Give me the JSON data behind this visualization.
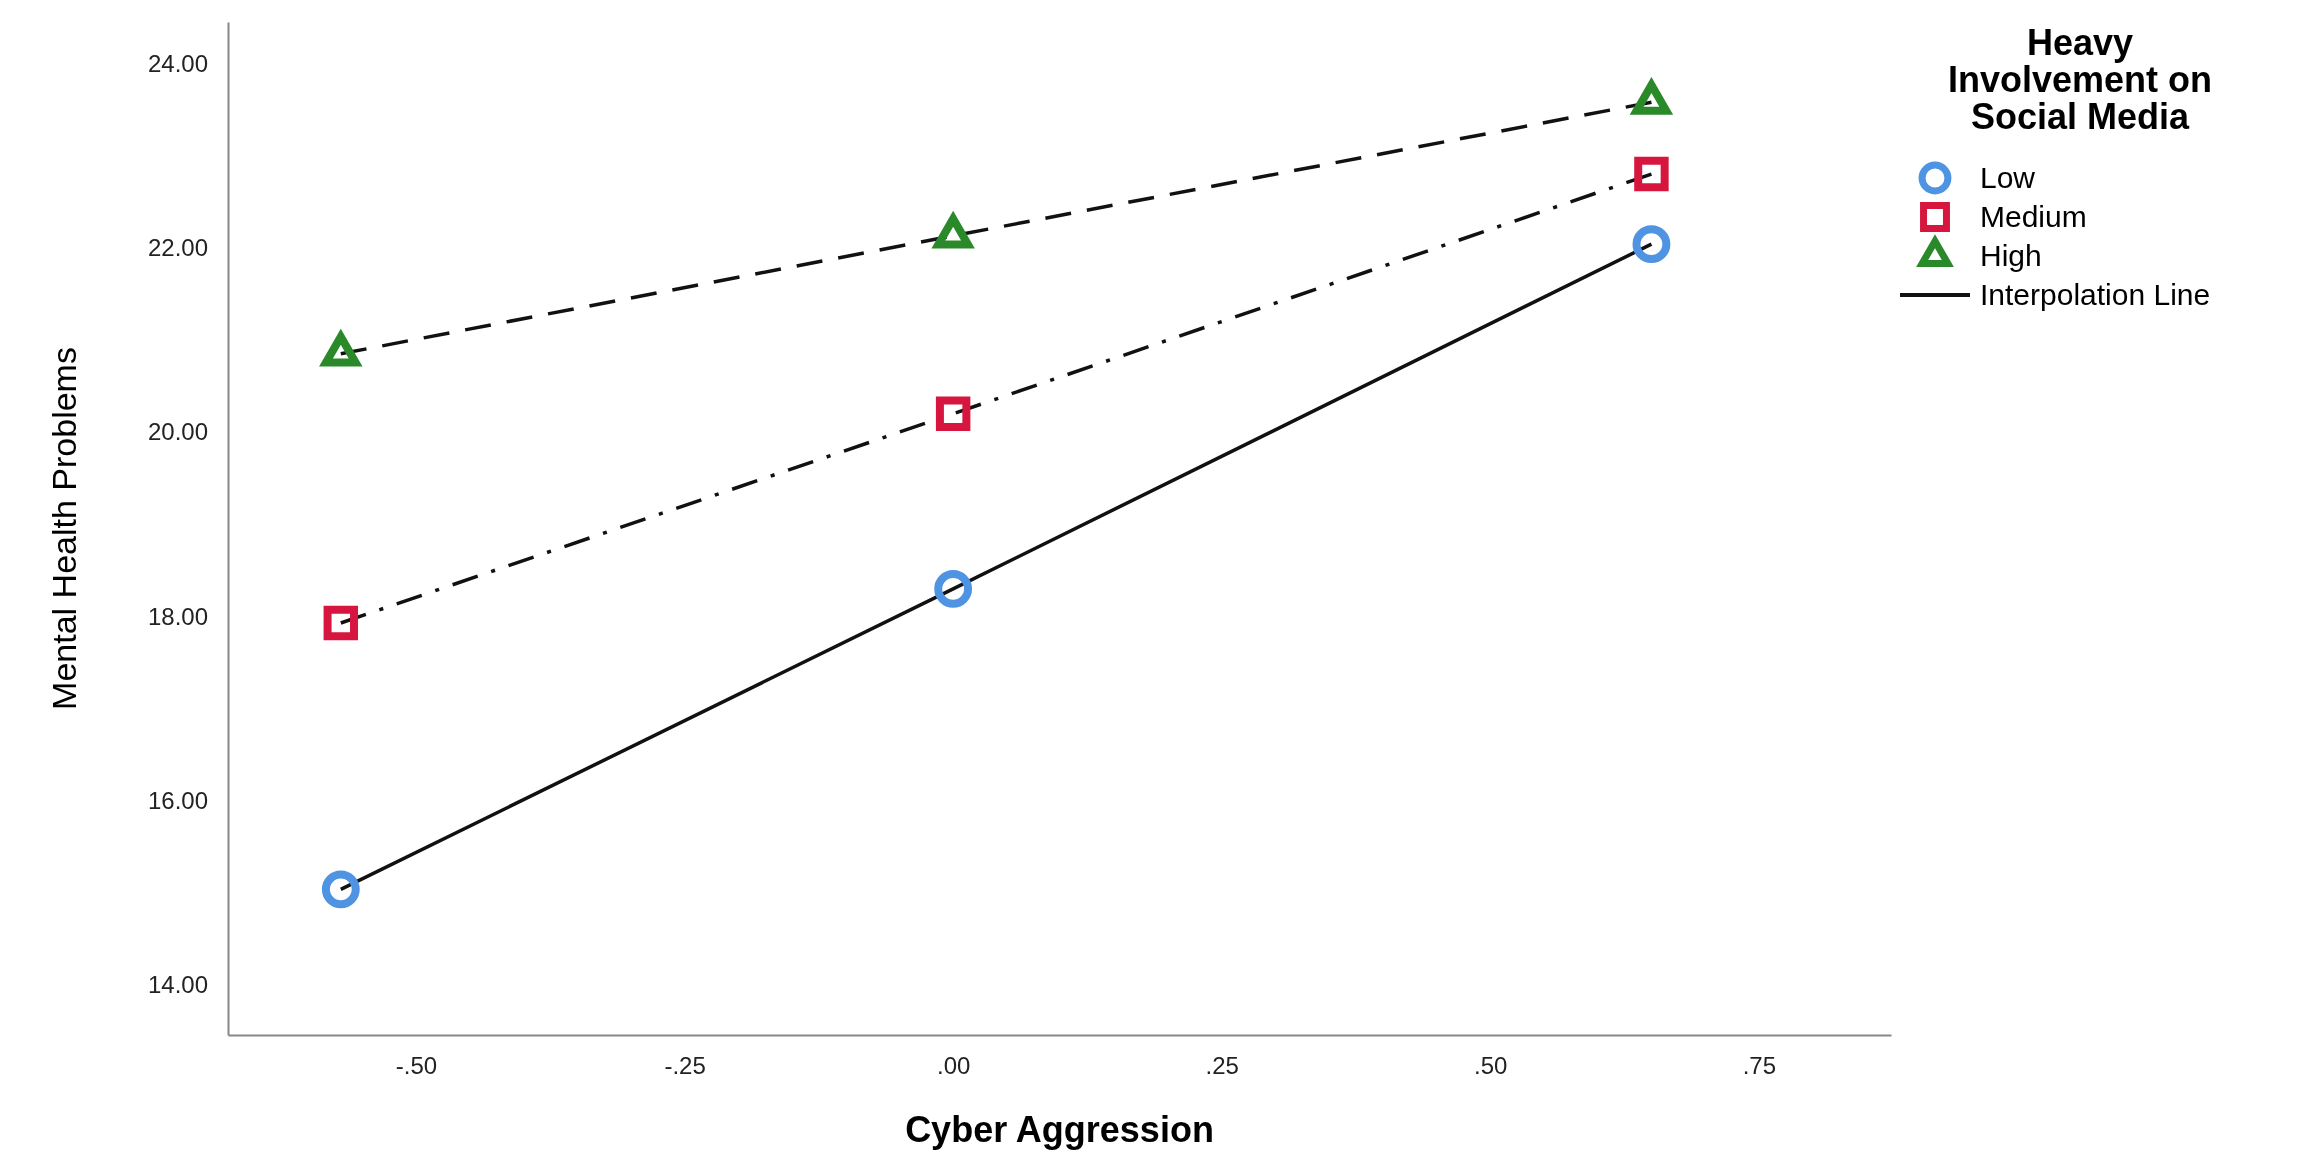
{
  "chart_data": {
    "type": "line",
    "xlabel": "Cyber Aggression",
    "ylabel": "Mental Health Problems",
    "legend_title": "Heavy Involvement on Social Media",
    "x": [
      -0.57,
      0,
      0.65
    ],
    "series": [
      {
        "name": "Low",
        "color": "#4f93e3",
        "values": [
          15.04,
          18.3,
          22.04
        ],
        "marker": "circle",
        "line_style": "solid"
      },
      {
        "name": "Medium",
        "color": "#d6163f",
        "values": [
          17.93,
          20.2,
          22.8
        ],
        "marker": "square",
        "line_style": "dashdot"
      },
      {
        "name": "High",
        "color": "#2a8a2a",
        "values": [
          20.85,
          22.13,
          23.58
        ],
        "marker": "triangle",
        "line_style": "dashed"
      }
    ],
    "annotations": [
      "Interpolation Line"
    ],
    "xlim": [
      -0.675,
      0.873
    ],
    "xticks": [
      {
        "value": -0.5,
        "label": "-.50"
      },
      {
        "value": -0.25,
        "label": "-.25"
      },
      {
        "value": 0,
        "label": ".00"
      },
      {
        "value": 0.25,
        "label": ".25"
      },
      {
        "value": 0.5,
        "label": ".50"
      },
      {
        "value": 0.75,
        "label": ".75"
      }
    ],
    "ylim": [
      13.46,
      24.45
    ],
    "yticks": [
      {
        "value": 14,
        "label": "14.00"
      },
      {
        "value": 16,
        "label": "16.00"
      },
      {
        "value": 18,
        "label": "18.00"
      },
      {
        "value": 20,
        "label": "20.00"
      },
      {
        "value": 22,
        "label": "22.00"
      },
      {
        "value": 24,
        "label": "24.00"
      }
    ],
    "grid": false,
    "legend": "top right"
  }
}
